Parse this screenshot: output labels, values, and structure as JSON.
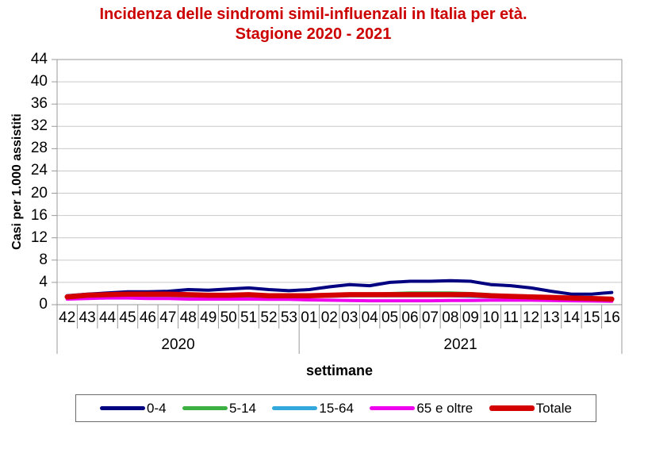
{
  "chart_data": {
    "type": "line",
    "title": "Incidenza delle sindromi simil-influenzali in Italia per età.",
    "subtitle": "Stagione 2020 - 2021",
    "title_color": "#CC0000",
    "ylabel": "Casi per 1.000 assistiti",
    "xlabel": "settimane",
    "ylim": [
      0,
      44
    ],
    "ytick_step": 4,
    "grid": true,
    "legend_position": "bottom",
    "categories": [
      "42",
      "43",
      "44",
      "45",
      "46",
      "47",
      "48",
      "49",
      "50",
      "51",
      "52",
      "53",
      "01",
      "02",
      "03",
      "04",
      "05",
      "06",
      "07",
      "08",
      "09",
      "10",
      "11",
      "12",
      "13",
      "14",
      "15",
      "16"
    ],
    "year_groups": [
      {
        "label": "2020",
        "span": 12
      },
      {
        "label": "2021",
        "span": 16
      }
    ],
    "series": [
      {
        "name": "0-4",
        "color": "#000080",
        "line_width": 4,
        "values": [
          1.6,
          1.9,
          2.1,
          2.3,
          2.3,
          2.4,
          2.7,
          2.6,
          2.8,
          3.0,
          2.7,
          2.5,
          2.7,
          3.2,
          3.6,
          3.4,
          4.0,
          4.2,
          4.2,
          4.3,
          4.2,
          3.6,
          3.4,
          3.0,
          2.4,
          1.9,
          1.9,
          2.2
        ]
      },
      {
        "name": "5-14",
        "color": "#3CB043",
        "line_width": 4,
        "values": [
          1.4,
          1.6,
          1.6,
          1.5,
          1.3,
          1.2,
          1.2,
          1.2,
          1.3,
          1.4,
          1.4,
          1.4,
          1.5,
          1.7,
          1.8,
          1.9,
          2.0,
          2.1,
          2.1,
          2.1,
          2.0,
          1.8,
          1.6,
          1.4,
          1.3,
          1.2,
          1.2,
          1.1
        ]
      },
      {
        "name": "15-64",
        "color": "#33A8DC",
        "line_width": 4,
        "values": [
          1.4,
          1.6,
          1.7,
          1.8,
          1.8,
          1.8,
          1.7,
          1.6,
          1.6,
          1.6,
          1.5,
          1.4,
          1.5,
          1.5,
          1.6,
          1.6,
          1.6,
          1.6,
          1.6,
          1.6,
          1.5,
          1.4,
          1.4,
          1.3,
          1.2,
          1.1,
          1.1,
          1.0
        ]
      },
      {
        "name": "65 e oltre",
        "color": "#EE00EE",
        "line_width": 4,
        "values": [
          1.0,
          1.1,
          1.2,
          1.2,
          1.1,
          1.1,
          1.0,
          1.0,
          1.0,
          1.0,
          0.95,
          0.95,
          0.85,
          0.8,
          0.75,
          0.7,
          0.7,
          0.7,
          0.7,
          0.75,
          0.75,
          0.8,
          0.8,
          0.8,
          0.75,
          0.7,
          0.65,
          0.6
        ]
      },
      {
        "name": "Totale",
        "color": "#D40000",
        "line_width": 6.5,
        "values": [
          1.4,
          1.7,
          1.8,
          1.9,
          1.9,
          1.9,
          1.8,
          1.7,
          1.7,
          1.8,
          1.6,
          1.6,
          1.6,
          1.7,
          1.8,
          1.8,
          1.8,
          1.8,
          1.8,
          1.8,
          1.8,
          1.6,
          1.5,
          1.4,
          1.3,
          1.2,
          1.1,
          1.0
        ]
      }
    ]
  }
}
